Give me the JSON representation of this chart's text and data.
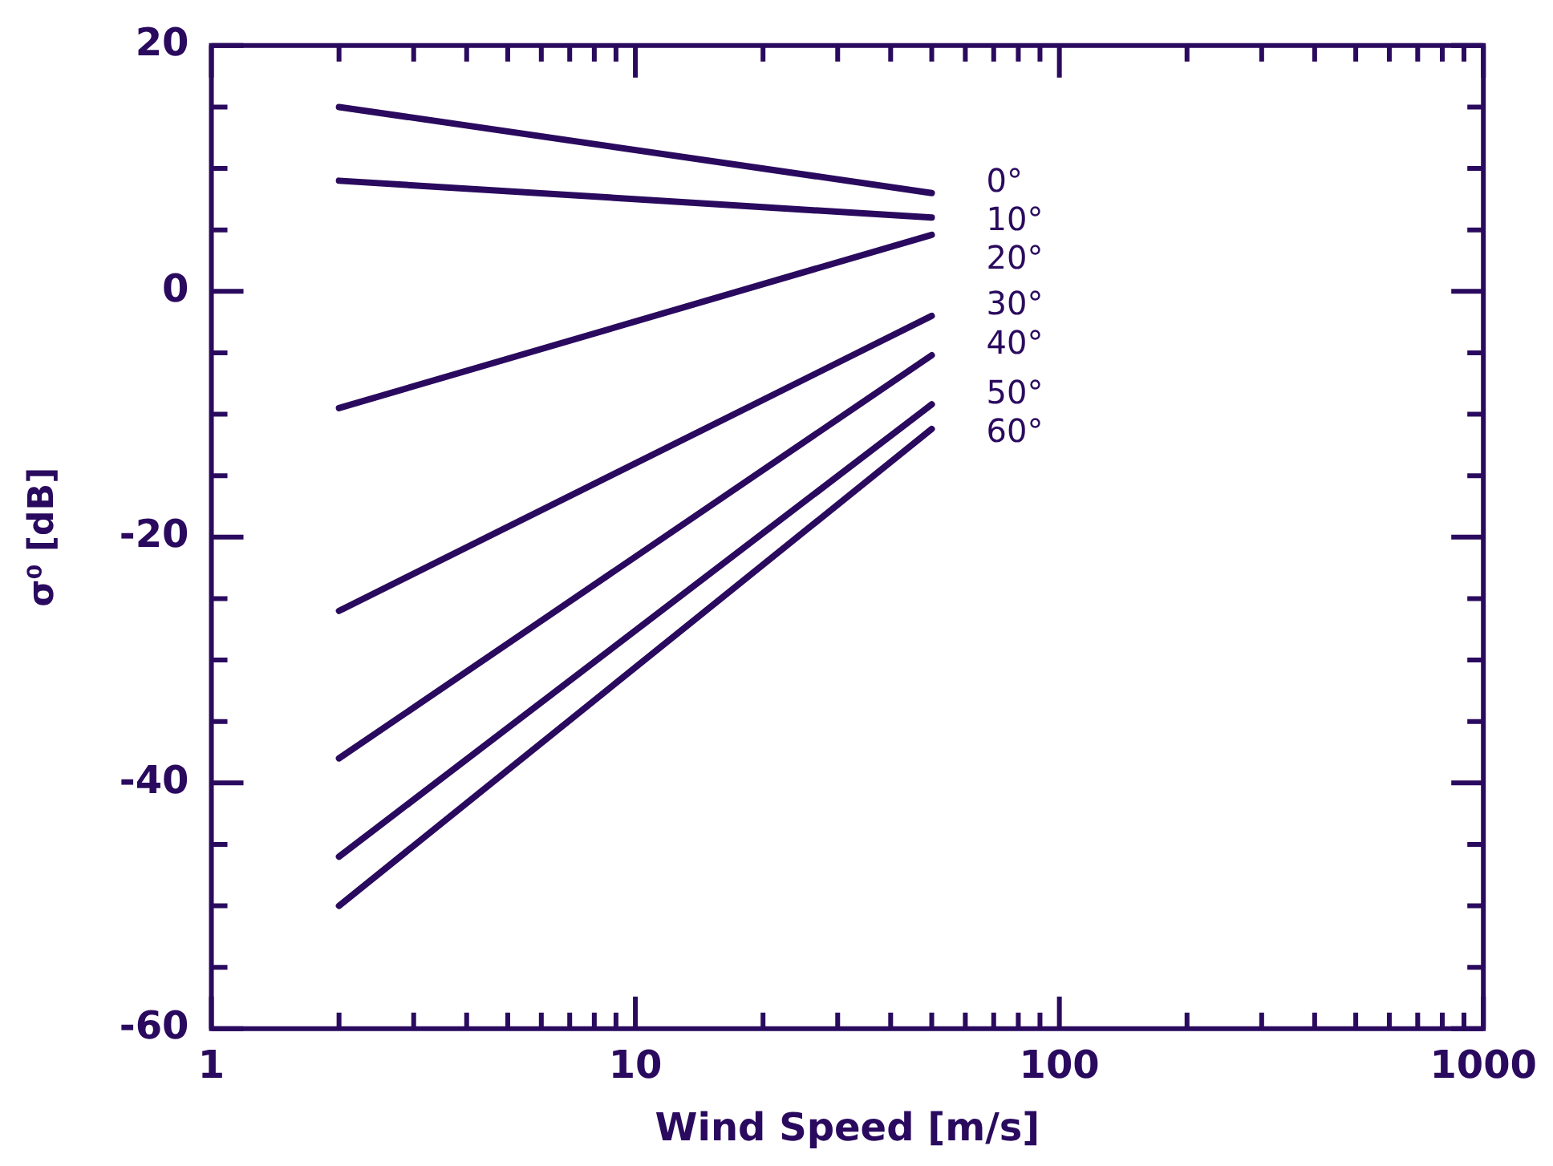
{
  "chart_data": {
    "type": "line",
    "xlabel": "Wind Speed [m/s]",
    "ylabel": "σ⁰ [dB]",
    "log": "x",
    "xlim": [
      1,
      1000
    ],
    "ylim": [
      -60,
      20
    ],
    "xticks": [
      1,
      {
        "value": 2,
        "label": null
      },
      {
        "value": 3,
        "label": null
      },
      {
        "value": 4,
        "label": null
      },
      {
        "value": 5,
        "label": null
      },
      {
        "value": 6,
        "label": null
      },
      {
        "value": 7,
        "label": null
      },
      {
        "value": 8,
        "label": null
      },
      {
        "value": 9,
        "label": null
      },
      10,
      {
        "value": 20,
        "label": null
      },
      {
        "value": 30,
        "label": null
      },
      {
        "value": 40,
        "label": null
      },
      {
        "value": 50,
        "label": null
      },
      {
        "value": 60,
        "label": null
      },
      {
        "value": 70,
        "label": null
      },
      {
        "value": 80,
        "label": null
      },
      {
        "value": 90,
        "label": null
      },
      100,
      {
        "value": 200,
        "label": null
      },
      {
        "value": 300,
        "label": null
      },
      {
        "value": 400,
        "label": null
      },
      {
        "value": 500,
        "label": null
      },
      {
        "value": 600,
        "label": null
      },
      {
        "value": 700,
        "label": null
      },
      {
        "value": 800,
        "label": null
      },
      {
        "value": 900,
        "label": null
      },
      1000
    ],
    "yticks": [
      -60,
      {
        "value": -55,
        "label": null
      },
      {
        "value": -50,
        "label": null
      },
      {
        "value": -45,
        "label": null
      },
      -40,
      {
        "value": -35,
        "label": null
      },
      {
        "value": -30,
        "label": null
      },
      {
        "value": -25,
        "label": null
      },
      -20,
      {
        "value": -15,
        "label": null
      },
      {
        "value": -10,
        "label": null
      },
      {
        "value": -5,
        "label": null
      },
      0,
      {
        "value": 5,
        "label": null
      },
      {
        "value": 10,
        "label": null
      },
      {
        "value": 15,
        "label": null
      },
      20
    ],
    "grid": false,
    "legend": false,
    "marker": "none",
    "line_style": "solid",
    "x": [
      2,
      50
    ],
    "series": [
      {
        "name": "0°",
        "color": "#2a0a5e",
        "values": [
          15,
          8
        ]
      },
      {
        "name": "10°",
        "color": "#2a0a5e",
        "values": [
          9,
          6
        ]
      },
      {
        "name": "20°",
        "color": "#2a0a5e",
        "values": [
          -9.5,
          4.6
        ]
      },
      {
        "name": "30°",
        "color": "#2a0a5e",
        "values": [
          -26,
          -2
        ]
      },
      {
        "name": "40°",
        "color": "#2a0a5e",
        "values": [
          -38,
          -5.2
        ]
      },
      {
        "name": "50°",
        "color": "#2a0a5e",
        "values": [
          -46,
          -9.2
        ]
      },
      {
        "name": "60°",
        "color": "#2a0a5e",
        "values": [
          -50,
          -11.2
        ]
      }
    ]
  }
}
